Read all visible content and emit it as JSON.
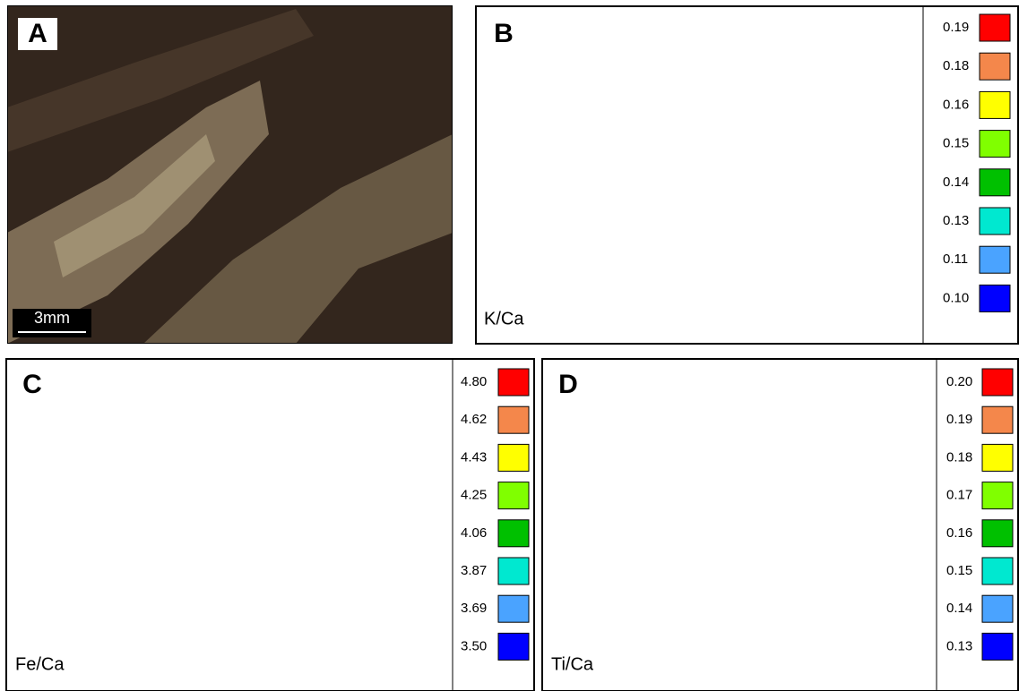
{
  "panels": [
    {
      "letter": "A",
      "scale_bar": "3mm"
    },
    {
      "letter": "B",
      "label": "K/Ca",
      "legend": [
        {
          "label": "0.19",
          "color": "#ff0000"
        },
        {
          "label": "0.18",
          "color": "#f4874b"
        },
        {
          "label": "0.16",
          "color": "#ffff00"
        },
        {
          "label": "0.15",
          "color": "#80ff00"
        },
        {
          "label": "0.14",
          "color": "#00c000"
        },
        {
          "label": "0.13",
          "color": "#00e8d0"
        },
        {
          "label": "0.11",
          "color": "#4aa3ff"
        },
        {
          "label": "0.10",
          "color": "#0000ff"
        }
      ]
    },
    {
      "letter": "C",
      "label": "Fe/Ca",
      "legend": [
        {
          "label": "4.80",
          "color": "#ff0000"
        },
        {
          "label": "4.62",
          "color": "#f4874b"
        },
        {
          "label": "4.43",
          "color": "#ffff00"
        },
        {
          "label": "4.25",
          "color": "#80ff00"
        },
        {
          "label": "4.06",
          "color": "#00c000"
        },
        {
          "label": "3.87",
          "color": "#00e8d0"
        },
        {
          "label": "3.69",
          "color": "#4aa3ff"
        },
        {
          "label": "3.50",
          "color": "#0000ff"
        }
      ]
    },
    {
      "letter": "D",
      "label": "Ti/Ca",
      "legend": [
        {
          "label": "0.20",
          "color": "#ff0000"
        },
        {
          "label": "0.19",
          "color": "#f4874b"
        },
        {
          "label": "0.18",
          "color": "#ffff00"
        },
        {
          "label": "0.17",
          "color": "#80ff00"
        },
        {
          "label": "0.16",
          "color": "#00c000"
        },
        {
          "label": "0.15",
          "color": "#00e8d0"
        },
        {
          "label": "0.14",
          "color": "#4aa3ff"
        },
        {
          "label": "0.13",
          "color": "#0000ff"
        }
      ]
    }
  ]
}
